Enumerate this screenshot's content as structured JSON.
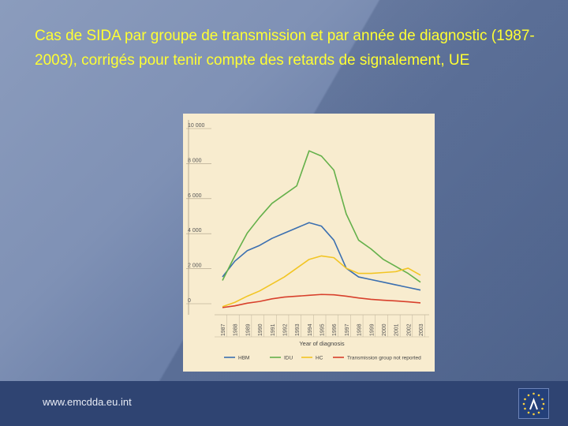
{
  "slide": {
    "title": "Cas de SIDA par groupe de transmission et par année de diagnostic (1987-2003), corrigés pour tenir compte des retards de signalement, UE",
    "footer_url": "www.emcdda.eu.int"
  },
  "colors": {
    "HBM": "#3b6fb0",
    "IDU": "#64b04a",
    "HC": "#f2c524",
    "not_reported": "#d8402c",
    "title_text": "#ffff33"
  },
  "chart_data": {
    "type": "line",
    "xlabel": "Year of diagnosis",
    "ylabel": "",
    "ylim": [
      0,
      10000
    ],
    "y_ticks": [
      "0",
      "2 000",
      "4 000",
      "6 000",
      "8 000",
      "10 000"
    ],
    "y_tick_values": [
      0,
      2000,
      4000,
      6000,
      8000,
      10000
    ],
    "categories": [
      "1987",
      "1988",
      "1989",
      "1990",
      "1991",
      "1992",
      "1993",
      "1994",
      "1995",
      "1996",
      "1997",
      "1998",
      "1999",
      "2000",
      "2001",
      "2002",
      "2003"
    ],
    "grid": false,
    "legend": "bottom",
    "series": [
      {
        "name": "HBM",
        "key": "HBM",
        "values": [
          1800,
          2700,
          3300,
          3600,
          4000,
          4300,
          4600,
          4900,
          4700,
          3900,
          2300,
          1800,
          1650,
          1500,
          1350,
          1200,
          1050
        ]
      },
      {
        "name": "IDU",
        "key": "IDU",
        "values": [
          1600,
          3000,
          4300,
          5200,
          6000,
          6500,
          7000,
          9000,
          8700,
          7900,
          5400,
          3900,
          3400,
          2800,
          2400,
          2000,
          1500
        ]
      },
      {
        "name": "HC",
        "key": "HC",
        "values": [
          100,
          350,
          700,
          1000,
          1400,
          1800,
          2300,
          2800,
          3000,
          2900,
          2300,
          2000,
          2000,
          2050,
          2100,
          2300,
          1900
        ]
      },
      {
        "name": "Transmission group not reported",
        "key": "not_reported",
        "values": [
          50,
          150,
          300,
          400,
          550,
          650,
          700,
          750,
          800,
          780,
          700,
          600,
          520,
          470,
          430,
          380,
          320
        ]
      }
    ]
  }
}
